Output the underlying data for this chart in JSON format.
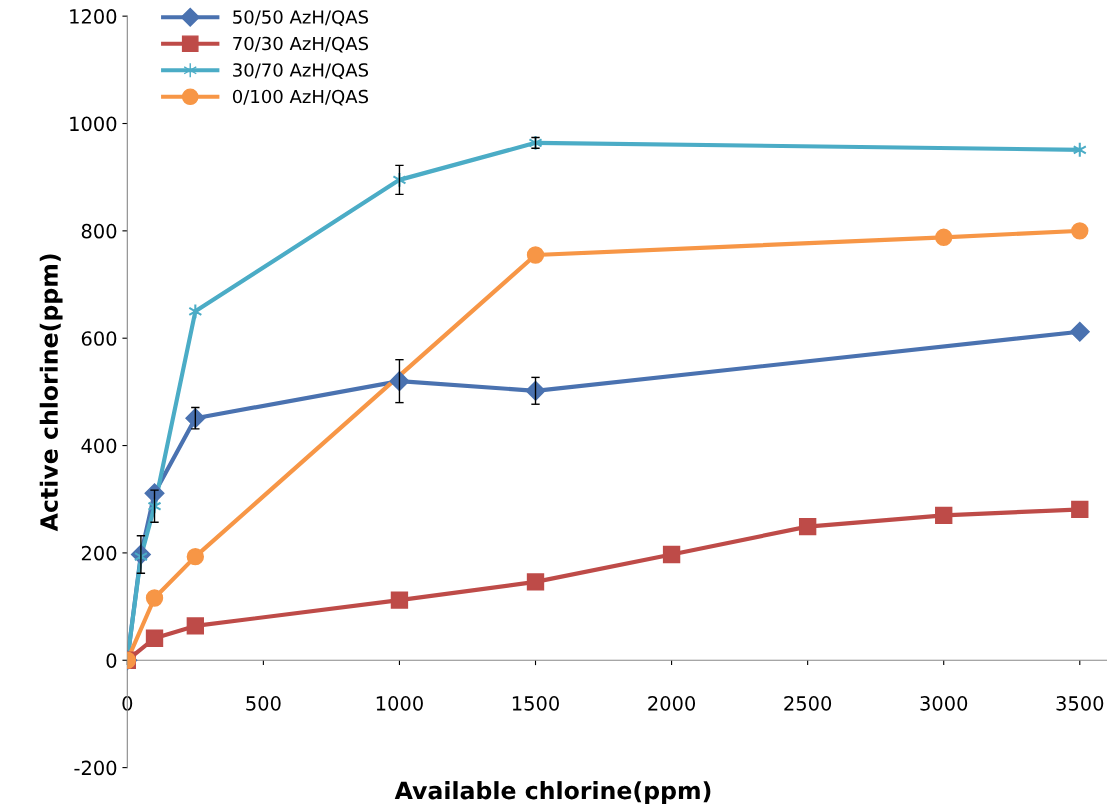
{
  "chart_data": {
    "type": "line",
    "xlabel": "Available chlorine(ppm)",
    "ylabel": "Active chlorine(ppm)",
    "xlim": [
      0,
      3600
    ],
    "xticks": [
      0,
      500,
      1000,
      1500,
      2000,
      2500,
      3000,
      3500
    ],
    "ylim": [
      -200,
      1200
    ],
    "yticks": [
      -200,
      0,
      200,
      400,
      600,
      800,
      1000,
      1200
    ],
    "grid": false,
    "legend": "top left",
    "line_style": "solid",
    "series": [
      {
        "name": "50/50 AzH/QAS",
        "color": "#4a72b0",
        "marker": "diamond",
        "x": [
          0,
          50,
          100,
          250,
          1000,
          1500,
          3500
        ],
        "values": [
          0,
          197,
          311,
          451,
          520,
          502,
          612
        ],
        "errors": [
          null,
          35,
          null,
          20,
          40,
          25,
          null
        ]
      },
      {
        "name": "70/30 AzH/QAS",
        "color": "#be4b48",
        "marker": "square",
        "x": [
          0,
          100,
          250,
          1000,
          1500,
          2000,
          2500,
          3000,
          3500
        ],
        "values": [
          0,
          41,
          64,
          112,
          146,
          197,
          249,
          270,
          281
        ]
      },
      {
        "name": "30/70 AzH/QAS",
        "color": "#4bacc6",
        "marker": "cross",
        "x": [
          0,
          50,
          100,
          250,
          1000,
          1500,
          3500
        ],
        "values": [
          0,
          193,
          287,
          650,
          895,
          964,
          951
        ],
        "errors": [
          null,
          null,
          30,
          null,
          27,
          10,
          null
        ]
      },
      {
        "name": "0/100 AzH/QAS",
        "color": "#f79646",
        "marker": "circle",
        "x": [
          0,
          100,
          250,
          1500,
          3000,
          3500
        ],
        "values": [
          0,
          116,
          193,
          755,
          788,
          800
        ]
      }
    ]
  }
}
